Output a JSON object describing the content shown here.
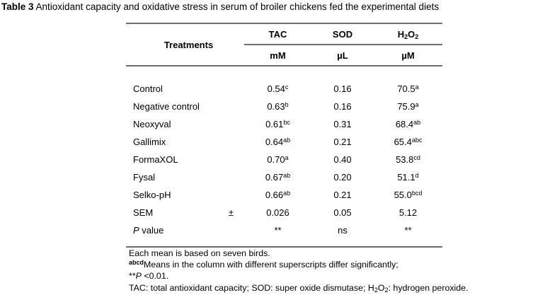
{
  "title": {
    "label": "Table 3",
    "text": " Antioxidant capacity and oxidative stress in serum of broiler chickens fed the experimental diets"
  },
  "colors": {
    "background": "#ffffff",
    "text": "#000000",
    "rule": "#6e6e6e"
  },
  "table": {
    "treatments_header": "Treatments",
    "columns": [
      {
        "name": "TAC",
        "unit": "mM"
      },
      {
        "name": "SOD",
        "unit": "µL"
      },
      {
        "name": {
          "p1": "H",
          "s1": "2",
          "p2": "O",
          "s2": "2"
        },
        "unit": "µM"
      }
    ],
    "rows": [
      {
        "treatment": "Control",
        "tac": {
          "v": "0.54",
          "sup": "c"
        },
        "sod": {
          "v": "0.16"
        },
        "h2o2": {
          "v": "70.5",
          "sup": "a"
        }
      },
      {
        "treatment": "Negative control",
        "tac": {
          "v": "0.63",
          "sup": "b"
        },
        "sod": {
          "v": "0.16"
        },
        "h2o2": {
          "v": "75.9",
          "sup": "a"
        }
      },
      {
        "treatment": "Neoxyval",
        "tac": {
          "v": "0.61",
          "sup": "bc"
        },
        "sod": {
          "v": "0.31"
        },
        "h2o2": {
          "v": "68.4",
          "sup": "ab"
        }
      },
      {
        "treatment": "Gallimix",
        "tac": {
          "v": "0.64",
          "sup": "ab"
        },
        "sod": {
          "v": "0.21"
        },
        "h2o2": {
          "v": "65.4",
          "sup": "abc"
        }
      },
      {
        "treatment": "FormaXOL",
        "tac": {
          "v": "0.70",
          "sup": "a"
        },
        "sod": {
          "v": "0.40"
        },
        "h2o2": {
          "v": "53.8",
          "sup": "cd"
        }
      },
      {
        "treatment": "Fysal",
        "tac": {
          "v": "0.67",
          "sup": "ab"
        },
        "sod": {
          "v": "0.20"
        },
        "h2o2": {
          "v": "51.1",
          "sup": "d"
        }
      },
      {
        "treatment": "Selko-pH",
        "tac": {
          "v": "0.66",
          "sup": "ab"
        },
        "sod": {
          "v": "0.21"
        },
        "h2o2": {
          "v": "55.0",
          "sup": "bcd"
        }
      },
      {
        "treatment": "SEM",
        "pm": "±",
        "tac": {
          "v": "0.026"
        },
        "sod": {
          "v": "0.05"
        },
        "h2o2": {
          "v": "5.12"
        }
      },
      {
        "treatment_italic": "P",
        "treatment_rest": " value",
        "tac": {
          "v": "**"
        },
        "sod": {
          "v": "ns"
        },
        "h2o2": {
          "v": "**"
        }
      }
    ]
  },
  "footnotes": {
    "line1": "Each mean is based on seven birds.",
    "line2_sup": "abcd",
    "line2_text": "Means in the column with different superscripts differ significantly;",
    "line3_stars": "**",
    "line3_p": "P",
    "line3_rest": " <0.01.",
    "line4_part1": "TAC: total antioxidant capacity; SOD: super oxide dismutase; H",
    "line4_sub1": "2",
    "line4_part2": "O",
    "line4_sub2": "2",
    "line4_part3": ": hydrogen peroxide."
  }
}
